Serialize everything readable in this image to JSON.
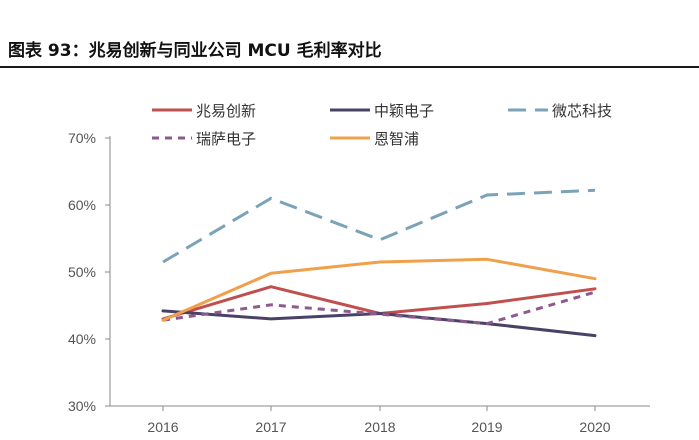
{
  "figure_title": "图表 93：兆易创新与同业公司 MCU 毛利率对比",
  "chart_data": {
    "type": "line",
    "title": "",
    "xlabel": "",
    "ylabel": "",
    "categories": [
      "2016",
      "2017",
      "2018",
      "2019",
      "2020"
    ],
    "ylim": [
      30,
      70
    ],
    "y_ticks": [
      "30%",
      "40%",
      "50%",
      "60%",
      "70%"
    ],
    "y_tick_values": [
      30,
      40,
      50,
      60,
      70
    ],
    "grid": false,
    "legend_position": "top",
    "series": [
      {
        "name": "兆易创新",
        "values": [
          43.0,
          47.8,
          43.8,
          45.3,
          47.5
        ],
        "color": "#c0504d",
        "style": "solid"
      },
      {
        "name": "中颖电子",
        "values": [
          44.2,
          43.0,
          43.8,
          42.3,
          40.5
        ],
        "color": "#4a4266",
        "style": "solid"
      },
      {
        "name": "微芯科技",
        "values": [
          51.5,
          61.0,
          54.8,
          61.5,
          62.2
        ],
        "color": "#7aa3b7",
        "style": "dashed"
      },
      {
        "name": "瑞萨电子",
        "values": [
          42.8,
          45.1,
          43.7,
          42.3,
          47.0
        ],
        "color": "#8e5a8e",
        "style": "dotted"
      },
      {
        "name": "恩智浦",
        "values": [
          42.8,
          49.8,
          51.5,
          51.9,
          49.0
        ],
        "color": "#f0a04b",
        "style": "solid"
      }
    ]
  }
}
